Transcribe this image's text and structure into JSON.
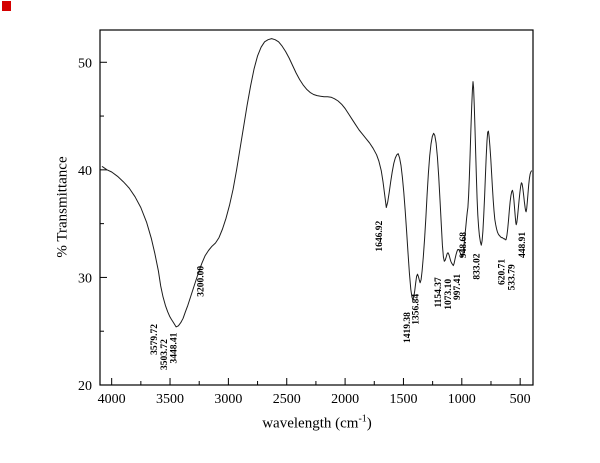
{
  "figure": {
    "background": "#ffffff",
    "corner_marker_color": "#d40000"
  },
  "chart_data": {
    "type": "line",
    "title": "",
    "xlabel": "wavelength (cm⁻¹)",
    "xlabel_parts": {
      "pre": "wavelength (cm",
      "sup": "-1",
      "post": ")"
    },
    "ylabel": "% Transmittance",
    "line_color": "#1c1c1c",
    "legend": "none",
    "grid": false,
    "x_axis": {
      "lim": [
        4100,
        390
      ],
      "reversed": true,
      "ticks": [
        4000,
        3500,
        3000,
        2500,
        2000,
        1500,
        1000,
        500
      ],
      "minor_ticks": [
        3750,
        3250,
        2750,
        2250,
        1750,
        1250,
        750
      ]
    },
    "y_axis": {
      "lim": [
        20,
        53
      ],
      "ticks": [
        20,
        30,
        40,
        50
      ],
      "minor_ticks": [
        25,
        35,
        45
      ]
    },
    "series": [
      {
        "name": "FTIR transmittance spectrum",
        "points": [
          [
            4080,
            40.3
          ],
          [
            4040,
            40.0
          ],
          [
            4000,
            39.8
          ],
          [
            3950,
            39.4
          ],
          [
            3900,
            38.9
          ],
          [
            3850,
            38.3
          ],
          [
            3800,
            37.5
          ],
          [
            3750,
            36.5
          ],
          [
            3700,
            35.1
          ],
          [
            3660,
            33.6
          ],
          [
            3630,
            32.2
          ],
          [
            3600,
            30.6
          ],
          [
            3580,
            29.2
          ],
          [
            3560,
            28.2
          ],
          [
            3540,
            27.4
          ],
          [
            3520,
            26.8
          ],
          [
            3504,
            26.4
          ],
          [
            3488,
            26.1
          ],
          [
            3470,
            25.8
          ],
          [
            3448,
            25.4
          ],
          [
            3428,
            25.5
          ],
          [
            3408,
            25.8
          ],
          [
            3388,
            26.2
          ],
          [
            3368,
            26.8
          ],
          [
            3348,
            27.4
          ],
          [
            3318,
            28.4
          ],
          [
            3288,
            29.4
          ],
          [
            3258,
            30.4
          ],
          [
            3228,
            31.3
          ],
          [
            3200,
            32.0
          ],
          [
            3170,
            32.5
          ],
          [
            3140,
            32.9
          ],
          [
            3110,
            33.2
          ],
          [
            3080,
            33.7
          ],
          [
            3050,
            34.5
          ],
          [
            3020,
            35.5
          ],
          [
            2990,
            36.7
          ],
          [
            2960,
            38.2
          ],
          [
            2930,
            40.0
          ],
          [
            2900,
            42.0
          ],
          [
            2870,
            44.0
          ],
          [
            2840,
            46.0
          ],
          [
            2810,
            47.8
          ],
          [
            2780,
            49.4
          ],
          [
            2750,
            50.6
          ],
          [
            2720,
            51.4
          ],
          [
            2690,
            51.9
          ],
          [
            2660,
            52.1
          ],
          [
            2630,
            52.2
          ],
          [
            2600,
            52.1
          ],
          [
            2570,
            51.9
          ],
          [
            2540,
            51.5
          ],
          [
            2510,
            51.0
          ],
          [
            2480,
            50.4
          ],
          [
            2450,
            49.7
          ],
          [
            2420,
            49.0
          ],
          [
            2390,
            48.4
          ],
          [
            2360,
            47.9
          ],
          [
            2330,
            47.5
          ],
          [
            2300,
            47.2
          ],
          [
            2270,
            47.0
          ],
          [
            2240,
            46.9
          ],
          [
            2210,
            46.85
          ],
          [
            2180,
            46.8
          ],
          [
            2150,
            46.8
          ],
          [
            2120,
            46.75
          ],
          [
            2090,
            46.6
          ],
          [
            2060,
            46.4
          ],
          [
            2030,
            46.1
          ],
          [
            2000,
            45.7
          ],
          [
            1970,
            45.2
          ],
          [
            1940,
            44.7
          ],
          [
            1910,
            44.2
          ],
          [
            1880,
            43.7
          ],
          [
            1850,
            43.3
          ],
          [
            1820,
            42.9
          ],
          [
            1790,
            42.5
          ],
          [
            1760,
            42.0
          ],
          [
            1730,
            41.4
          ],
          [
            1710,
            40.8
          ],
          [
            1690,
            39.9
          ],
          [
            1675,
            38.9
          ],
          [
            1660,
            37.6
          ],
          [
            1647,
            36.5
          ],
          [
            1635,
            37.0
          ],
          [
            1622,
            37.9
          ],
          [
            1609,
            38.9
          ],
          [
            1596,
            39.8
          ],
          [
            1583,
            40.6
          ],
          [
            1570,
            41.1
          ],
          [
            1557,
            41.4
          ],
          [
            1545,
            41.5
          ],
          [
            1533,
            41.1
          ],
          [
            1521,
            40.4
          ],
          [
            1509,
            39.3
          ],
          [
            1497,
            37.9
          ],
          [
            1485,
            36.2
          ],
          [
            1473,
            34.3
          ],
          [
            1461,
            32.3
          ],
          [
            1449,
            30.4
          ],
          [
            1437,
            28.9
          ],
          [
            1428,
            28.2
          ],
          [
            1419,
            27.9
          ],
          [
            1411,
            28.2
          ],
          [
            1403,
            28.8
          ],
          [
            1395,
            29.5
          ],
          [
            1387,
            30.1
          ],
          [
            1380,
            30.3
          ],
          [
            1373,
            30.1
          ],
          [
            1365,
            29.8
          ],
          [
            1357,
            29.5
          ],
          [
            1349,
            29.8
          ],
          [
            1340,
            30.6
          ],
          [
            1330,
            31.9
          ],
          [
            1319,
            33.6
          ],
          [
            1308,
            35.6
          ],
          [
            1297,
            37.7
          ],
          [
            1286,
            39.7
          ],
          [
            1275,
            41.3
          ],
          [
            1264,
            42.4
          ],
          [
            1253,
            43.1
          ],
          [
            1242,
            43.4
          ],
          [
            1231,
            43.2
          ],
          [
            1220,
            42.5
          ],
          [
            1209,
            41.2
          ],
          [
            1198,
            39.4
          ],
          [
            1187,
            37.2
          ],
          [
            1176,
            34.9
          ],
          [
            1166,
            33.0
          ],
          [
            1158,
            31.9
          ],
          [
            1150,
            31.5
          ],
          [
            1142,
            31.6
          ],
          [
            1134,
            31.9
          ],
          [
            1126,
            32.2
          ],
          [
            1118,
            32.3
          ],
          [
            1110,
            32.1
          ],
          [
            1102,
            31.8
          ],
          [
            1094,
            31.5
          ],
          [
            1086,
            31.3
          ],
          [
            1078,
            31.2
          ],
          [
            1073,
            31.1
          ],
          [
            1066,
            31.3
          ],
          [
            1058,
            31.7
          ],
          [
            1050,
            32.1
          ],
          [
            1042,
            32.4
          ],
          [
            1034,
            32.6
          ],
          [
            1026,
            32.6
          ],
          [
            1018,
            32.4
          ],
          [
            1010,
            32.2
          ],
          [
            1003,
            32.0
          ],
          [
            997,
            31.9
          ],
          [
            990,
            32.2
          ],
          [
            982,
            32.9
          ],
          [
            974,
            33.8
          ],
          [
            966,
            34.7
          ],
          [
            959,
            35.5
          ],
          [
            953,
            36.1
          ],
          [
            948,
            36.5
          ],
          [
            942,
            37.6
          ],
          [
            936,
            39.2
          ],
          [
            929,
            41.4
          ],
          [
            922,
            43.8
          ],
          [
            915,
            45.9
          ],
          [
            909,
            47.4
          ],
          [
            904,
            48.2
          ],
          [
            899,
            47.6
          ],
          [
            893,
            45.9
          ],
          [
            887,
            43.8
          ],
          [
            881,
            41.5
          ],
          [
            875,
            39.3
          ],
          [
            869,
            37.3
          ],
          [
            863,
            35.8
          ],
          [
            856,
            34.7
          ],
          [
            849,
            33.9
          ],
          [
            841,
            33.3
          ],
          [
            833,
            33.0
          ],
          [
            826,
            33.4
          ],
          [
            819,
            34.3
          ],
          [
            812,
            35.7
          ],
          [
            805,
            37.5
          ],
          [
            798,
            39.4
          ],
          [
            791,
            41.2
          ],
          [
            784,
            42.7
          ],
          [
            778,
            43.5
          ],
          [
            772,
            43.6
          ],
          [
            766,
            43.1
          ],
          [
            759,
            42.2
          ],
          [
            752,
            41.0
          ],
          [
            745,
            39.7
          ],
          [
            738,
            38.4
          ],
          [
            731,
            37.2
          ],
          [
            724,
            36.2
          ],
          [
            717,
            35.4
          ],
          [
            710,
            34.9
          ],
          [
            702,
            34.5
          ],
          [
            694,
            34.2
          ],
          [
            686,
            34.0
          ],
          [
            678,
            33.9
          ],
          [
            670,
            33.8
          ],
          [
            661,
            33.7
          ],
          [
            652,
            33.7
          ],
          [
            643,
            33.6
          ],
          [
            634,
            33.6
          ],
          [
            627,
            33.5
          ],
          [
            621,
            33.5
          ],
          [
            614,
            33.9
          ],
          [
            607,
            34.5
          ],
          [
            600,
            35.3
          ],
          [
            593,
            36.2
          ],
          [
            586,
            37.0
          ],
          [
            579,
            37.6
          ],
          [
            572,
            38.0
          ],
          [
            566,
            38.1
          ],
          [
            560,
            37.8
          ],
          [
            554,
            37.2
          ],
          [
            548,
            36.4
          ],
          [
            542,
            35.6
          ],
          [
            537,
            35.1
          ],
          [
            534,
            34.9
          ],
          [
            529,
            35.1
          ],
          [
            523,
            35.6
          ],
          [
            516,
            36.4
          ],
          [
            509,
            37.2
          ],
          [
            502,
            37.9
          ],
          [
            495,
            38.5
          ],
          [
            489,
            38.8
          ],
          [
            483,
            38.7
          ],
          [
            477,
            38.3
          ],
          [
            470,
            37.6
          ],
          [
            464,
            37.0
          ],
          [
            458,
            36.5
          ],
          [
            453,
            36.2
          ],
          [
            449,
            36.1
          ],
          [
            444,
            36.4
          ],
          [
            439,
            37.0
          ],
          [
            433,
            37.8
          ],
          [
            427,
            38.6
          ],
          [
            421,
            39.2
          ],
          [
            415,
            39.6
          ],
          [
            409,
            39.8
          ],
          [
            403,
            39.9
          ]
        ]
      }
    ],
    "peak_labels": [
      {
        "text": "3579.72",
        "x": 3610,
        "y": 22.8
      },
      {
        "text": "3503.72",
        "x": 3528,
        "y": 21.4
      },
      {
        "text": "3448.41",
        "x": 3445,
        "y": 22.0
      },
      {
        "text": "3200.00",
        "x": 3215,
        "y": 28.2
      },
      {
        "text": "1646.92",
        "x": 1682,
        "y": 32.4
      },
      {
        "text": "1419.38",
        "x": 1445,
        "y": 23.9
      },
      {
        "text": "1356.84",
        "x": 1372,
        "y": 25.6
      },
      {
        "text": "1154.37",
        "x": 1178,
        "y": 27.2
      },
      {
        "text": "1073.10",
        "x": 1092,
        "y": 27.0
      },
      {
        "text": "997.41",
        "x": 1014,
        "y": 27.9
      },
      {
        "text": "948.68",
        "x": 962,
        "y": 31.8
      },
      {
        "text": "833.02",
        "x": 848,
        "y": 29.8
      },
      {
        "text": "620.71",
        "x": 636,
        "y": 29.3
      },
      {
        "text": "533.79",
        "x": 548,
        "y": 28.8
      },
      {
        "text": "448.91",
        "x": 458,
        "y": 31.8
      }
    ]
  }
}
